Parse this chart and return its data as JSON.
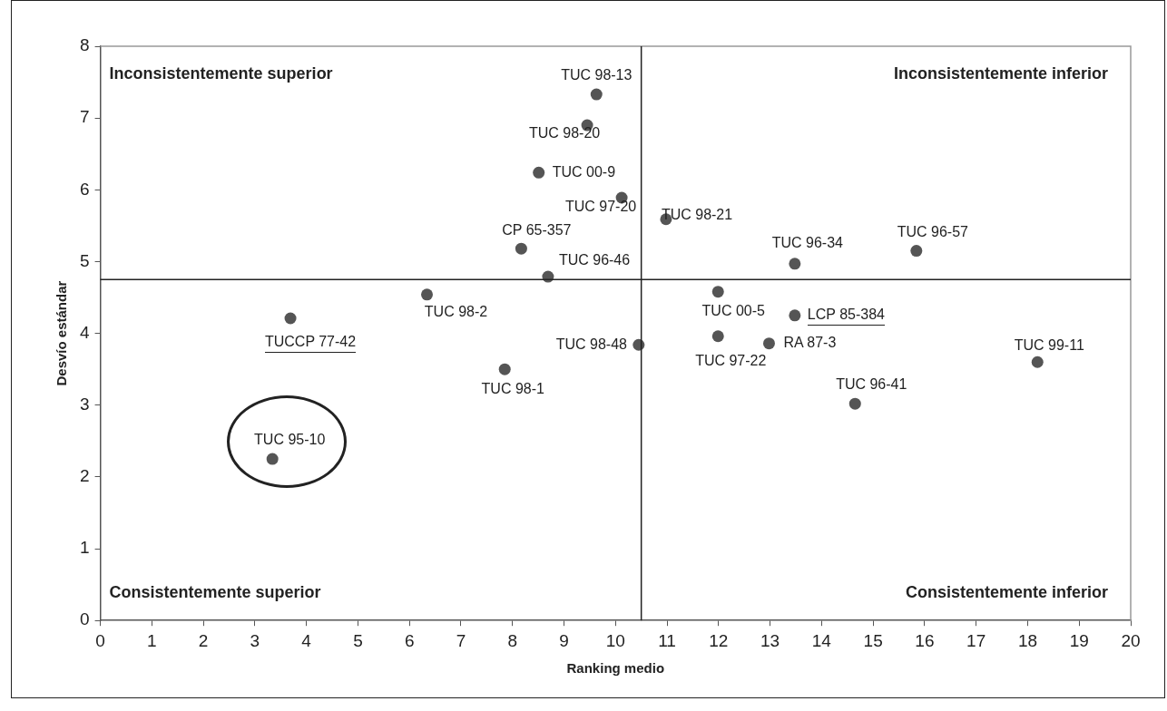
{
  "chart_data": {
    "type": "scatter",
    "xlabel": "Ranking medio",
    "ylabel": "Desvío estándar",
    "x": [
      9.63,
      9.45,
      8.51,
      10.12,
      10.98,
      8.17,
      8.69,
      13.48,
      15.84,
      6.34,
      3.69,
      7.85,
      3.34,
      11.99,
      13.48,
      11.99,
      12.98,
      10.45,
      18.19,
      14.65
    ],
    "series": [
      {
        "color": "#555555",
        "values": [
          7.33,
          6.9,
          6.24,
          5.89,
          5.59,
          5.18,
          4.79,
          4.97,
          5.15,
          4.54,
          4.21,
          3.5,
          2.25,
          4.58,
          4.25,
          3.96,
          3.86,
          3.84,
          3.6,
          3.02
        ]
      }
    ],
    "marker": "circle",
    "grid": false,
    "legend": false,
    "xlim": [
      0,
      20
    ],
    "xticks": [
      0,
      1,
      2,
      3,
      4,
      5,
      6,
      7,
      8,
      9,
      10,
      11,
      12,
      13,
      14,
      15,
      16,
      17,
      18,
      19,
      20
    ],
    "ylim": [
      0,
      8
    ],
    "yticks": [
      0,
      1,
      2,
      3,
      4,
      5,
      6,
      7,
      8
    ],
    "ref_lines": [
      {
        "axis": "x",
        "value": 10.5,
        "color": "#222222"
      },
      {
        "axis": "y",
        "value": 4.75,
        "color": "#222222"
      }
    ],
    "annotations": [
      {
        "text": "TUC 98-13",
        "x": 9.63,
        "y": 7.33
      },
      {
        "text": "TUC 98-20",
        "x": 9.45,
        "y": 6.9
      },
      {
        "text": "TUC 00-9",
        "x": 8.51,
        "y": 6.24
      },
      {
        "text": "TUC 97-20",
        "x": 10.12,
        "y": 5.89
      },
      {
        "text": "TUC 98-21",
        "x": 10.98,
        "y": 5.59
      },
      {
        "text": "CP 65-357",
        "x": 8.17,
        "y": 5.18
      },
      {
        "text": "TUC 96-46",
        "x": 8.69,
        "y": 4.79
      },
      {
        "text": "TUC 96-34",
        "x": 13.48,
        "y": 4.97
      },
      {
        "text": "TUC 96-57",
        "x": 15.84,
        "y": 5.15
      },
      {
        "text": "TUC 98-2",
        "x": 6.34,
        "y": 4.54
      },
      {
        "text": "TUCCP 77-42",
        "x": 3.69,
        "y": 4.21
      },
      {
        "text": "TUC 98-1",
        "x": 7.85,
        "y": 3.5
      },
      {
        "text": "TUC 95-10",
        "x": 3.34,
        "y": 2.25
      },
      {
        "text": "TUC 00-5",
        "x": 11.99,
        "y": 4.58
      },
      {
        "text": "LCP 85-384",
        "x": 13.48,
        "y": 4.25
      },
      {
        "text": "TUC 97-22",
        "x": 11.99,
        "y": 3.96
      },
      {
        "text": "RA 87-3",
        "x": 12.98,
        "y": 3.86
      },
      {
        "text": "TUC 98-48",
        "x": 10.45,
        "y": 3.84
      },
      {
        "text": "TUC 99-11",
        "x": 18.19,
        "y": 3.6
      },
      {
        "text": "TUC 96-41",
        "x": 14.65,
        "y": 3.02
      },
      "Inconsistentemente superior",
      "Inconsistentemente inferior",
      "Consistentemente superior",
      "Consistentemente inferior"
    ]
  }
}
